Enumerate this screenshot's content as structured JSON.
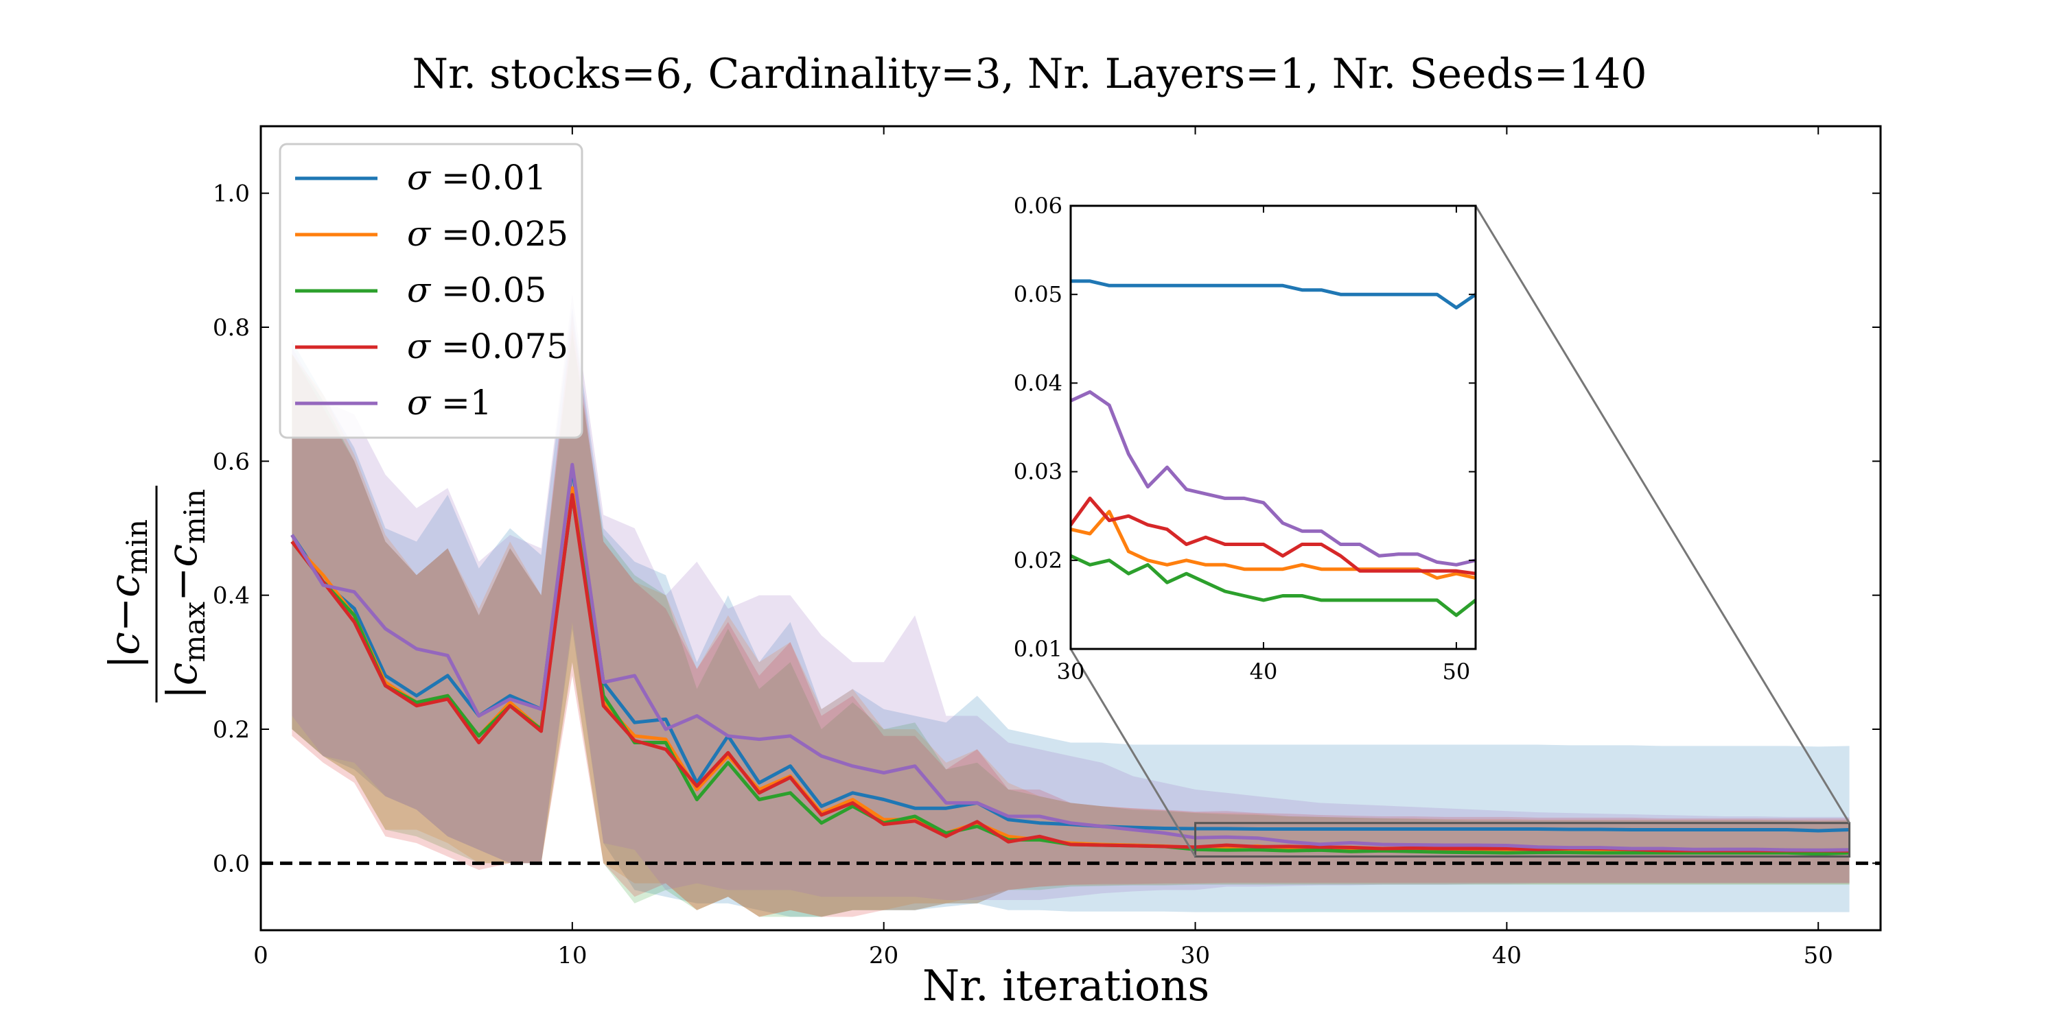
{
  "chart_data": {
    "type": "line",
    "title": "Nr. stocks=6, Cardinality=3, Nr. Layers=1, Nr. Seeds=140",
    "xlabel": "Nr. iterations",
    "ylabel_numerator": "|c−c",
    "ylabel_numerator_sub": "min",
    "ylabel_denominator_pre": "|c",
    "ylabel_denominator_sub1": "max",
    "ylabel_denominator_mid": "−c",
    "ylabel_denominator_sub2": "min",
    "xlim": [
      0,
      52
    ],
    "ylim": [
      -0.1,
      1.1
    ],
    "xticks": [
      0,
      10,
      20,
      30,
      40,
      50
    ],
    "yticks": [
      0.0,
      0.2,
      0.4,
      0.6,
      0.8,
      1.0
    ],
    "xtick_labels": [
      "0",
      "10",
      "20",
      "30",
      "40",
      "50"
    ],
    "ytick_labels": [
      "0.0",
      "0.2",
      "0.4",
      "0.6",
      "0.8",
      "1.0"
    ],
    "grid": false,
    "legend_position": "top-left",
    "reference_line": {
      "y": 0.0,
      "style": "dashed",
      "color": "#000000"
    },
    "x": [
      1,
      2,
      3,
      4,
      5,
      6,
      7,
      8,
      9,
      10,
      11,
      12,
      13,
      14,
      15,
      16,
      17,
      18,
      19,
      20,
      21,
      22,
      23,
      24,
      25,
      26,
      27,
      28,
      29,
      30,
      31,
      32,
      33,
      34,
      35,
      36,
      37,
      38,
      39,
      40,
      41,
      42,
      43,
      44,
      45,
      46,
      47,
      48,
      49,
      50,
      51
    ],
    "series": [
      {
        "name": "σ =0.01",
        "label_symbol": "σ",
        "label_value": " =0.01",
        "color": "#1f77b4",
        "band_opacity": 0.2,
        "values": [
          0.49,
          0.42,
          0.38,
          0.28,
          0.25,
          0.28,
          0.22,
          0.25,
          0.23,
          0.59,
          0.27,
          0.21,
          0.215,
          0.12,
          0.19,
          0.12,
          0.145,
          0.085,
          0.105,
          0.095,
          0.082,
          0.082,
          0.09,
          0.065,
          0.06,
          0.058,
          0.055,
          0.0535,
          0.052,
          0.0515,
          0.0515,
          0.051,
          0.051,
          0.051,
          0.051,
          0.051,
          0.051,
          0.051,
          0.051,
          0.051,
          0.051,
          0.0505,
          0.0505,
          0.05,
          0.05,
          0.05,
          0.05,
          0.05,
          0.05,
          0.0485,
          0.05
        ],
        "band_lower": [
          0.2,
          0.16,
          0.14,
          0.1,
          0.08,
          0.04,
          0.02,
          0.0,
          0.0,
          0.35,
          0.03,
          -0.04,
          -0.05,
          -0.06,
          -0.06,
          -0.07,
          -0.08,
          -0.08,
          -0.07,
          -0.07,
          -0.07,
          -0.065,
          -0.06,
          -0.07,
          -0.07,
          -0.072,
          -0.072,
          -0.072,
          -0.072,
          -0.073,
          -0.073,
          -0.073,
          -0.073,
          -0.073,
          -0.073,
          -0.073,
          -0.073,
          -0.073,
          -0.073,
          -0.073,
          -0.073,
          -0.073,
          -0.073,
          -0.073,
          -0.073,
          -0.073,
          -0.073,
          -0.073,
          -0.073,
          -0.073,
          -0.073
        ],
        "band_upper": [
          0.78,
          0.7,
          0.62,
          0.5,
          0.48,
          0.55,
          0.44,
          0.5,
          0.46,
          0.83,
          0.5,
          0.45,
          0.43,
          0.3,
          0.4,
          0.3,
          0.36,
          0.23,
          0.26,
          0.23,
          0.22,
          0.21,
          0.25,
          0.2,
          0.19,
          0.18,
          0.18,
          0.177,
          0.177,
          0.177,
          0.177,
          0.177,
          0.177,
          0.177,
          0.177,
          0.177,
          0.177,
          0.177,
          0.177,
          0.177,
          0.177,
          0.176,
          0.176,
          0.176,
          0.175,
          0.175,
          0.175,
          0.175,
          0.175,
          0.174,
          0.175
        ]
      },
      {
        "name": "σ =0.025",
        "label_symbol": "σ",
        "label_value": " =0.025",
        "color": "#ff7f0e",
        "band_opacity": 0.2,
        "values": [
          0.48,
          0.43,
          0.37,
          0.27,
          0.24,
          0.25,
          0.19,
          0.24,
          0.2,
          0.56,
          0.24,
          0.19,
          0.185,
          0.11,
          0.16,
          0.11,
          0.13,
          0.075,
          0.095,
          0.065,
          0.065,
          0.045,
          0.06,
          0.04,
          0.035,
          0.03,
          0.028,
          0.027,
          0.0255,
          0.0235,
          0.023,
          0.0255,
          0.021,
          0.02,
          0.0195,
          0.02,
          0.0195,
          0.0195,
          0.019,
          0.019,
          0.019,
          0.0195,
          0.019,
          0.019,
          0.019,
          0.019,
          0.019,
          0.019,
          0.018,
          0.0185,
          0.018
        ],
        "band_lower": [
          0.2,
          0.16,
          0.13,
          0.05,
          0.05,
          0.03,
          0.0,
          0.0,
          0.0,
          0.3,
          0.0,
          -0.03,
          -0.03,
          -0.07,
          -0.05,
          -0.08,
          -0.07,
          -0.08,
          -0.07,
          -0.07,
          -0.06,
          -0.06,
          -0.05,
          -0.04,
          -0.035,
          -0.033,
          -0.033,
          -0.032,
          -0.032,
          -0.031,
          -0.031,
          -0.031,
          -0.031,
          -0.031,
          -0.031,
          -0.031,
          -0.031,
          -0.031,
          -0.031,
          -0.031,
          -0.031,
          -0.031,
          -0.031,
          -0.031,
          -0.031,
          -0.031,
          -0.031,
          -0.031,
          -0.031,
          -0.031,
          -0.031
        ],
        "band_upper": [
          0.76,
          0.7,
          0.61,
          0.49,
          0.43,
          0.47,
          0.38,
          0.48,
          0.4,
          0.8,
          0.48,
          0.42,
          0.4,
          0.29,
          0.37,
          0.3,
          0.33,
          0.23,
          0.26,
          0.2,
          0.2,
          0.15,
          0.17,
          0.12,
          0.1,
          0.09,
          0.085,
          0.082,
          0.079,
          0.076,
          0.075,
          0.074,
          0.07,
          0.069,
          0.068,
          0.067,
          0.067,
          0.066,
          0.066,
          0.066,
          0.065,
          0.065,
          0.065,
          0.065,
          0.065,
          0.065,
          0.065,
          0.065,
          0.064,
          0.064,
          0.064
        ]
      },
      {
        "name": "σ =0.05",
        "label_symbol": "σ",
        "label_value": " =0.05",
        "color": "#2ca02c",
        "band_opacity": 0.2,
        "values": [
          0.48,
          0.42,
          0.37,
          0.265,
          0.24,
          0.25,
          0.19,
          0.235,
          0.2,
          0.55,
          0.25,
          0.18,
          0.18,
          0.095,
          0.15,
          0.095,
          0.105,
          0.06,
          0.085,
          0.06,
          0.07,
          0.045,
          0.055,
          0.035,
          0.035,
          0.028,
          0.027,
          0.026,
          0.025,
          0.0205,
          0.0195,
          0.02,
          0.0185,
          0.0195,
          0.0175,
          0.0185,
          0.0175,
          0.0165,
          0.016,
          0.0155,
          0.016,
          0.016,
          0.0155,
          0.0155,
          0.0155,
          0.0155,
          0.0155,
          0.0155,
          0.0155,
          0.0138,
          0.0155
        ],
        "band_lower": [
          0.2,
          0.16,
          0.13,
          0.05,
          0.04,
          0.02,
          0.0,
          0.0,
          0.0,
          0.3,
          0.0,
          -0.06,
          -0.04,
          -0.07,
          -0.05,
          -0.08,
          -0.08,
          -0.08,
          -0.07,
          -0.07,
          -0.07,
          -0.06,
          -0.06,
          -0.04,
          -0.04,
          -0.035,
          -0.034,
          -0.033,
          -0.033,
          -0.032,
          -0.032,
          -0.032,
          -0.032,
          -0.032,
          -0.032,
          -0.032,
          -0.032,
          -0.032,
          -0.032,
          -0.032,
          -0.032,
          -0.032,
          -0.032,
          -0.032,
          -0.032,
          -0.032,
          -0.032,
          -0.032,
          -0.032,
          -0.032,
          -0.032
        ],
        "band_upper": [
          0.76,
          0.69,
          0.6,
          0.48,
          0.43,
          0.47,
          0.37,
          0.47,
          0.4,
          0.79,
          0.49,
          0.43,
          0.4,
          0.26,
          0.35,
          0.26,
          0.3,
          0.2,
          0.24,
          0.2,
          0.21,
          0.14,
          0.15,
          0.11,
          0.1,
          0.09,
          0.085,
          0.08,
          0.078,
          0.075,
          0.073,
          0.072,
          0.07,
          0.069,
          0.068,
          0.067,
          0.066,
          0.065,
          0.064,
          0.064,
          0.064,
          0.064,
          0.064,
          0.064,
          0.064,
          0.064,
          0.064,
          0.064,
          0.064,
          0.063,
          0.064
        ]
      },
      {
        "name": "σ =0.075",
        "label_symbol": "σ",
        "label_value": " =0.075",
        "color": "#d62728",
        "band_opacity": 0.2,
        "values": [
          0.48,
          0.42,
          0.36,
          0.265,
          0.235,
          0.245,
          0.18,
          0.235,
          0.197,
          0.55,
          0.235,
          0.183,
          0.17,
          0.115,
          0.165,
          0.105,
          0.128,
          0.072,
          0.09,
          0.058,
          0.063,
          0.04,
          0.062,
          0.032,
          0.04,
          0.028,
          0.027,
          0.026,
          0.025,
          0.024,
          0.027,
          0.0245,
          0.025,
          0.024,
          0.0235,
          0.0218,
          0.0226,
          0.0218,
          0.0218,
          0.0218,
          0.0205,
          0.0218,
          0.0218,
          0.0205,
          0.0188,
          0.0188,
          0.0188,
          0.0188,
          0.0188,
          0.0188,
          0.0185
        ],
        "band_lower": [
          0.19,
          0.15,
          0.12,
          0.04,
          0.03,
          0.01,
          -0.01,
          0.0,
          0.0,
          0.28,
          0.0,
          -0.05,
          -0.03,
          -0.07,
          -0.05,
          -0.08,
          -0.07,
          -0.08,
          -0.08,
          -0.07,
          -0.07,
          -0.06,
          -0.06,
          -0.04,
          -0.035,
          -0.032,
          -0.031,
          -0.031,
          -0.03,
          -0.03,
          -0.029,
          -0.029,
          -0.029,
          -0.029,
          -0.029,
          -0.029,
          -0.029,
          -0.029,
          -0.029,
          -0.029,
          -0.029,
          -0.029,
          -0.029,
          -0.029,
          -0.029,
          -0.029,
          -0.029,
          -0.029,
          -0.029,
          -0.029,
          -0.029
        ],
        "band_upper": [
          0.76,
          0.68,
          0.6,
          0.48,
          0.43,
          0.47,
          0.37,
          0.47,
          0.4,
          0.82,
          0.48,
          0.42,
          0.38,
          0.29,
          0.36,
          0.28,
          0.33,
          0.22,
          0.25,
          0.19,
          0.19,
          0.14,
          0.17,
          0.11,
          0.11,
          0.09,
          0.085,
          0.082,
          0.08,
          0.077,
          0.078,
          0.075,
          0.074,
          0.072,
          0.071,
          0.07,
          0.07,
          0.069,
          0.069,
          0.069,
          0.068,
          0.068,
          0.068,
          0.068,
          0.067,
          0.067,
          0.067,
          0.067,
          0.067,
          0.067,
          0.067
        ]
      },
      {
        "name": "σ =1",
        "label_symbol": "σ",
        "label_value": " =1",
        "color": "#9467bd",
        "band_opacity": 0.2,
        "values": [
          0.49,
          0.415,
          0.405,
          0.35,
          0.32,
          0.31,
          0.22,
          0.245,
          0.23,
          0.595,
          0.27,
          0.28,
          0.2,
          0.22,
          0.19,
          0.185,
          0.19,
          0.16,
          0.145,
          0.135,
          0.145,
          0.09,
          0.09,
          0.07,
          0.07,
          0.06,
          0.055,
          0.05,
          0.045,
          0.038,
          0.039,
          0.0375,
          0.032,
          0.0283,
          0.0305,
          0.028,
          0.0275,
          0.027,
          0.027,
          0.0265,
          0.0242,
          0.0233,
          0.0233,
          0.0218,
          0.0218,
          0.0205,
          0.0207,
          0.0207,
          0.0198,
          0.0195,
          0.02
        ],
        "band_lower": [
          0.22,
          0.16,
          0.15,
          0.1,
          0.08,
          0.04,
          0.02,
          0.0,
          0.0,
          0.36,
          0.03,
          0.02,
          -0.04,
          -0.03,
          -0.04,
          -0.04,
          -0.04,
          -0.05,
          -0.05,
          -0.05,
          -0.05,
          -0.055,
          -0.055,
          -0.055,
          -0.055,
          -0.05,
          -0.045,
          -0.042,
          -0.04,
          -0.04,
          -0.035,
          -0.035,
          -0.034,
          -0.033,
          -0.033,
          -0.032,
          -0.032,
          -0.032,
          -0.031,
          -0.031,
          -0.03,
          -0.03,
          -0.03,
          -0.03,
          -0.03,
          -0.03,
          -0.03,
          -0.03,
          -0.03,
          -0.03,
          -0.03
        ],
        "band_upper": [
          0.77,
          0.69,
          0.67,
          0.58,
          0.53,
          0.56,
          0.45,
          0.49,
          0.47,
          0.85,
          0.52,
          0.5,
          0.4,
          0.45,
          0.38,
          0.4,
          0.4,
          0.34,
          0.3,
          0.3,
          0.37,
          0.22,
          0.22,
          0.18,
          0.17,
          0.16,
          0.15,
          0.13,
          0.12,
          0.11,
          0.105,
          0.1,
          0.095,
          0.09,
          0.088,
          0.086,
          0.084,
          0.082,
          0.08,
          0.078,
          0.076,
          0.075,
          0.074,
          0.073,
          0.072,
          0.071,
          0.07,
          0.07,
          0.069,
          0.069,
          0.069
        ]
      }
    ],
    "inset": {
      "xlim": [
        30,
        51
      ],
      "ylim": [
        0.01,
        0.06
      ],
      "xticks": [
        30,
        40,
        50
      ],
      "yticks": [
        0.01,
        0.02,
        0.03,
        0.04,
        0.05,
        0.06
      ],
      "xtick_labels": [
        "30",
        "40",
        "50"
      ],
      "ytick_labels": [
        "0.01",
        "0.02",
        "0.03",
        "0.04",
        "0.05",
        "0.06"
      ],
      "zoom_connector_color": "#777777"
    }
  }
}
